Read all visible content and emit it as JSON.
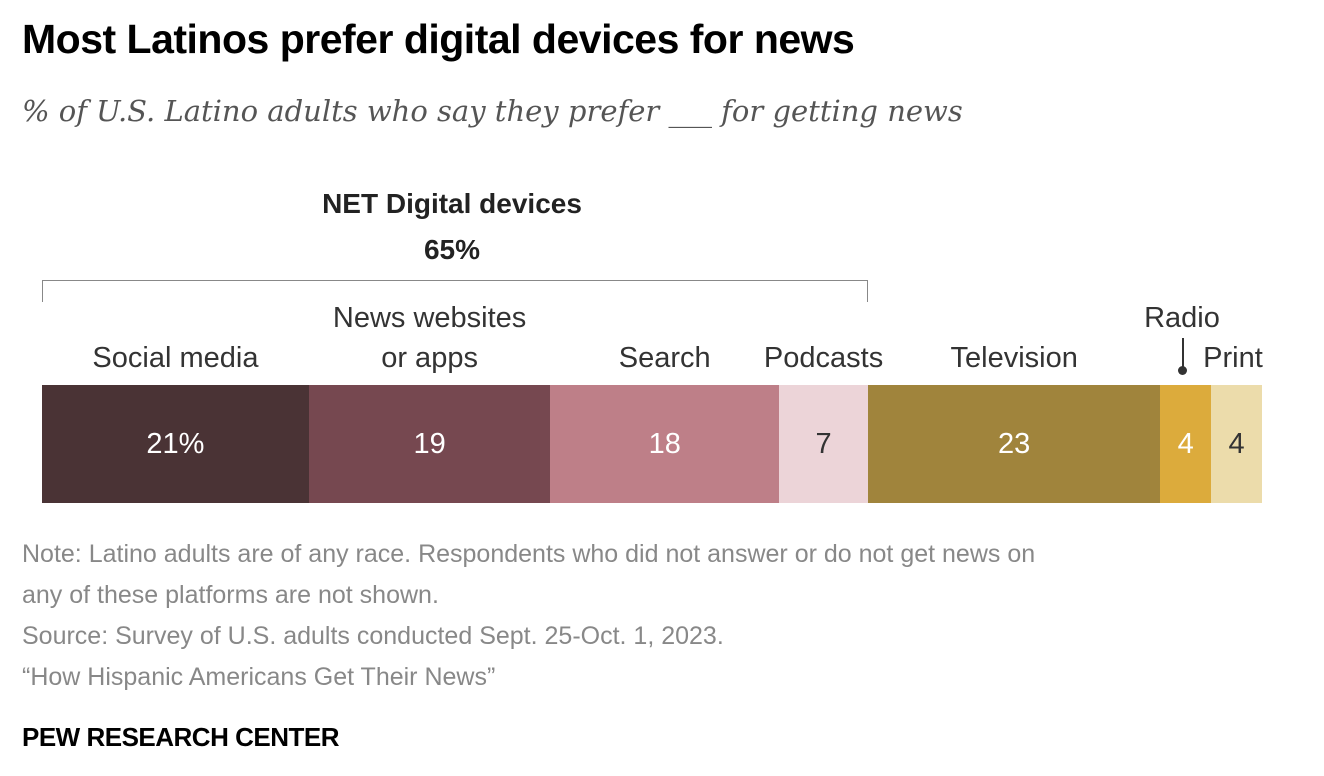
{
  "chart_data": {
    "type": "bar",
    "orientation": "horizontal-stacked",
    "title": "Most Latinos prefer digital devices for news",
    "subtitle": "% of U.S. Latino adults who say they prefer ___ for getting news",
    "categories": [
      "Social media",
      "News websites or apps",
      "Search",
      "Podcasts",
      "Television",
      "Radio",
      "Print"
    ],
    "category_lines": [
      [
        "Social media"
      ],
      [
        "News websites",
        "or apps"
      ],
      [
        "Search"
      ],
      [
        "Podcasts"
      ],
      [
        "Television"
      ],
      [
        "Radio"
      ],
      [
        "Print"
      ]
    ],
    "values": [
      21,
      19,
      18,
      7,
      23,
      4,
      4
    ],
    "value_labels": [
      "21%",
      "19",
      "18",
      "7",
      "23",
      "4",
      "4"
    ],
    "colors": [
      "#4a3335",
      "#764850",
      "#be7f88",
      "#ecd4d8",
      "#a0843c",
      "#dcab3c",
      "#ecdcab"
    ],
    "label_colors": [
      "#ffffff",
      "#ffffff",
      "#ffffff",
      "#333333",
      "#ffffff",
      "#ffffff",
      "#333333"
    ],
    "net": {
      "label": "NET Digital devices",
      "value": "65%",
      "spans": [
        "Social media",
        "News websites or apps",
        "Search",
        "Podcasts"
      ]
    }
  },
  "notes": [
    "Note: Latino adults are of any race. Respondents who did not answer or do not get news on",
    "any of these platforms are not shown.",
    "Source: Survey of U.S. adults conducted Sept. 25-Oct. 1, 2023.",
    "“How Hispanic Americans Get Their News”"
  ],
  "source_org": "PEW RESEARCH CENTER"
}
